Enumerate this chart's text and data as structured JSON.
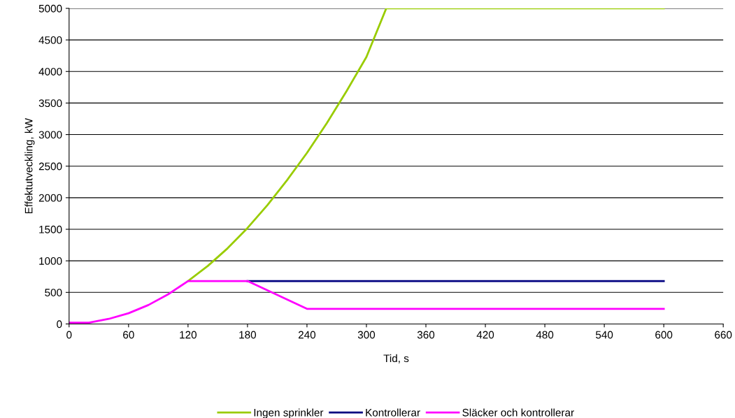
{
  "chart_data": {
    "type": "line",
    "xlabel": "Tid, s",
    "ylabel": "Effektutveckling, kW",
    "xlim": [
      0,
      660
    ],
    "xticks": [
      0,
      60,
      120,
      180,
      240,
      300,
      360,
      420,
      480,
      540,
      600,
      660
    ],
    "ylim": [
      0,
      5000
    ],
    "yticks": [
      0,
      500,
      1000,
      1500,
      2000,
      2500,
      3000,
      3500,
      4000,
      4500,
      5000
    ],
    "grid": "y",
    "legend": "bottom",
    "marker": "none",
    "line_style": "solid",
    "series": [
      {
        "name": "Ingen sprinkler",
        "color": "#99cc00",
        "x": [
          120,
          140,
          160,
          180,
          200,
          220,
          240,
          260,
          280,
          300,
          320,
          600
        ],
        "values": [
          680,
          920,
          1200,
          1520,
          1880,
          2280,
          2710,
          3180,
          3690,
          4230,
          5000,
          5000
        ]
      },
      {
        "name": "Kontrollerar",
        "color": "#000080",
        "x": [
          180,
          600
        ],
        "values": [
          680,
          680
        ]
      },
      {
        "name": "Släcker och kontrollerar",
        "color": "#ff00ff",
        "x": [
          0,
          20,
          40,
          60,
          80,
          100,
          120,
          180,
          240,
          600
        ],
        "values": [
          20,
          20,
          80,
          170,
          300,
          470,
          680,
          680,
          240,
          240
        ]
      }
    ]
  }
}
